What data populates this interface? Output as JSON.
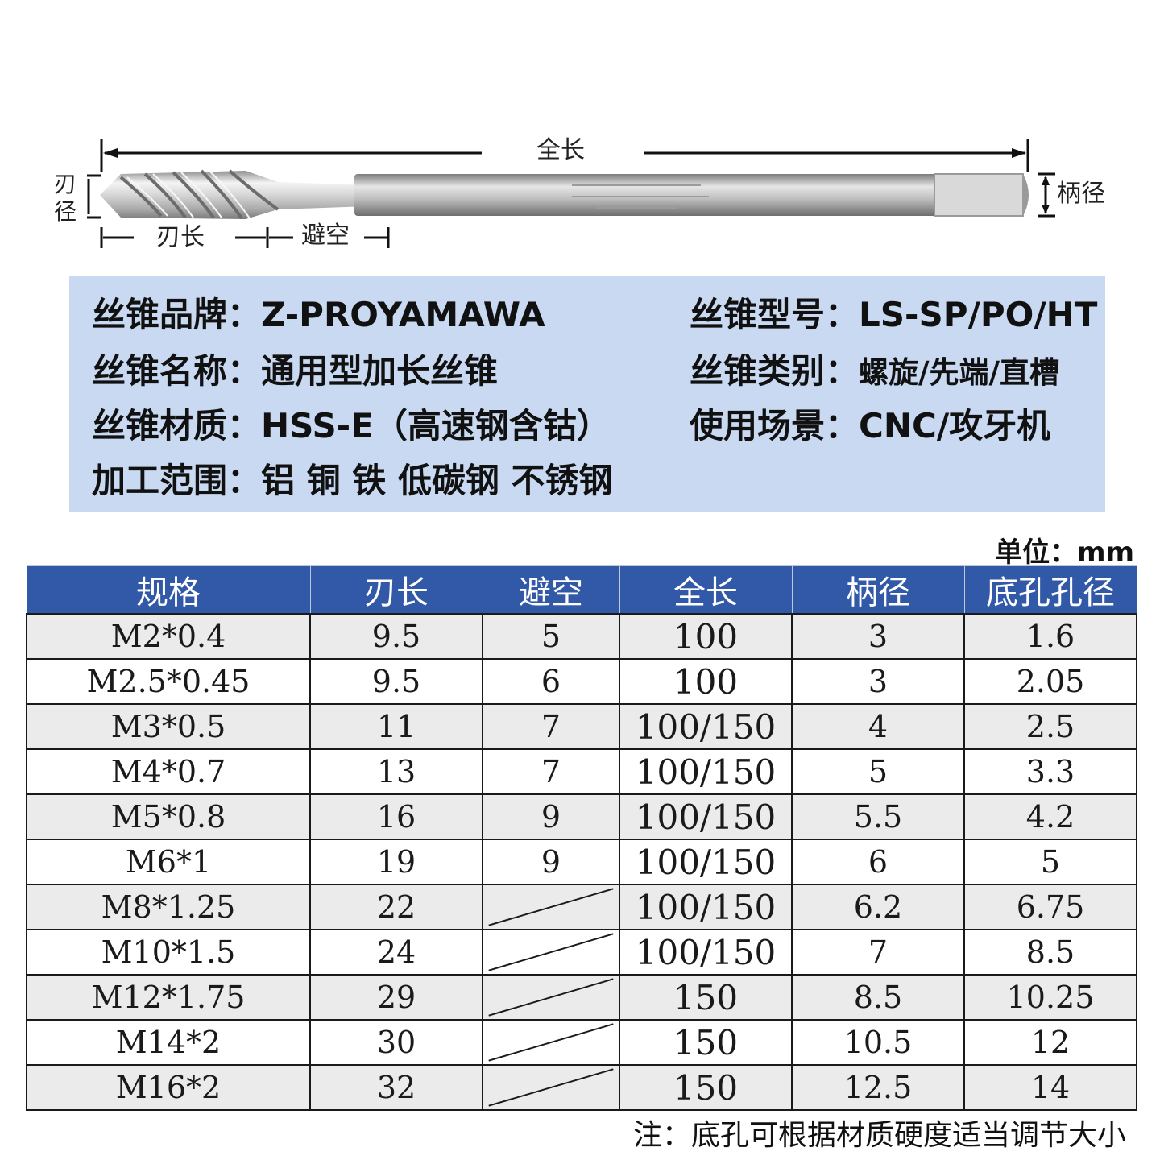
{
  "diagram": {
    "total_length_label": "全长",
    "blade_diameter_label": "刃径",
    "blade_length_label": "刃长",
    "clearance_label": "避空",
    "shank_diameter_label": "柄径"
  },
  "spec": {
    "brand_key": "丝锥品牌：",
    "brand_value": "Z-PROYAMAWA",
    "model_key": "丝锥型号：",
    "model_value": "LS-SP/PO/HT",
    "name_key": "丝锥名称：",
    "name_value": "通用型加长丝锥",
    "category_key": "丝锥类别：",
    "category_value": "螺旋/先端/直槽",
    "material_key": "丝锥材质：",
    "material_value": "HSS-E（高速钢含钴）",
    "usage_key": "使用场景：",
    "usage_value": "CNC/攻牙机",
    "range_key": "加工范围：",
    "range_value": "铝 铜 铁 低碳钢 不锈钢"
  },
  "unit": "单位：mm",
  "table": {
    "headers": [
      "规格",
      "刃长",
      "避空",
      "全长",
      "柄径",
      "底孔孔径"
    ],
    "rows": [
      [
        "M2*0.4",
        "9.5",
        "5",
        "100",
        "3",
        "1.6"
      ],
      [
        "M2.5*0.45",
        "9.5",
        "6",
        "100",
        "3",
        "2.05"
      ],
      [
        "M3*0.5",
        "11",
        "7",
        "100/150",
        "4",
        "2.5"
      ],
      [
        "M4*0.7",
        "13",
        "7",
        "100/150",
        "5",
        "3.3"
      ],
      [
        "M5*0.8",
        "16",
        "9",
        "100/150",
        "5.5",
        "4.2"
      ],
      [
        "M6*1",
        "19",
        "9",
        "100/150",
        "6",
        "5"
      ],
      [
        "M8*1.25",
        "22",
        "",
        "100/150",
        "6.2",
        "6.75"
      ],
      [
        "M10*1.5",
        "24",
        "",
        "100/150",
        "7",
        "8.5"
      ],
      [
        "M12*1.75",
        "29",
        "",
        "150",
        "8.5",
        "10.25"
      ],
      [
        "M14*2",
        "30",
        "",
        "150",
        "10.5",
        "12"
      ],
      [
        "M16*2",
        "32",
        "",
        "150",
        "12.5",
        "14"
      ]
    ]
  },
  "note": "注：底孔可根据材质硬度适当调节大小"
}
